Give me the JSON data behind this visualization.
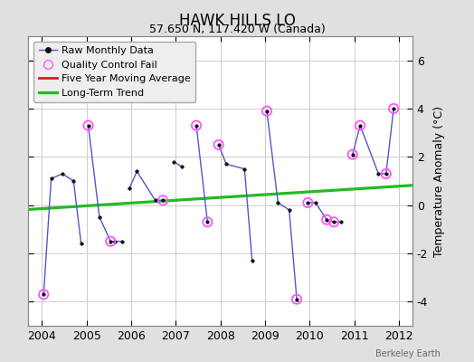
{
  "title": "HAWK HILLS LO",
  "subtitle": "57.650 N, 117.420 W (Canada)",
  "ylabel": "Temperature Anomaly (°C)",
  "attribution": "Berkeley Earth",
  "xlim": [
    2003.7,
    2012.3
  ],
  "ylim": [
    -5.0,
    7.0
  ],
  "yticks": [
    -4,
    -2,
    0,
    2,
    4,
    6
  ],
  "xticks": [
    2004,
    2005,
    2006,
    2007,
    2008,
    2009,
    2010,
    2011,
    2012
  ],
  "segments": [
    {
      "x": [
        2004.04,
        2004.21,
        2004.46,
        2004.71,
        2004.88
      ],
      "y": [
        -3.7,
        1.1,
        1.3,
        1.0,
        -1.6
      ]
    },
    {
      "x": [
        2005.04,
        2005.29,
        2005.54,
        2005.63,
        2005.79
      ],
      "y": [
        3.3,
        -0.5,
        -1.5,
        -1.5,
        -1.5
      ]
    },
    {
      "x": [
        2005.96,
        2006.13,
        2006.54,
        2006.71
      ],
      "y": [
        0.7,
        1.4,
        0.2,
        0.2
      ]
    },
    {
      "x": [
        2006.96,
        2007.13
      ],
      "y": [
        1.8,
        1.6
      ]
    },
    {
      "x": [
        2007.46,
        2007.71
      ],
      "y": [
        3.3,
        -0.7
      ]
    },
    {
      "x": [
        2007.96,
        2008.13,
        2008.54,
        2008.71
      ],
      "y": [
        2.5,
        1.7,
        1.5,
        -2.3
      ]
    },
    {
      "x": [
        2009.04,
        2009.29,
        2009.54,
        2009.71
      ],
      "y": [
        3.9,
        0.1,
        -0.2,
        -3.9
      ]
    },
    {
      "x": [
        2009.96,
        2010.13,
        2010.38,
        2010.54,
        2010.71
      ],
      "y": [
        0.1,
        0.1,
        -0.6,
        -0.7,
        -0.7
      ]
    },
    {
      "x": [
        2010.96,
        2011.13,
        2011.54,
        2011.71,
        2011.88
      ],
      "y": [
        2.1,
        3.3,
        1.3,
        1.3,
        4.0
      ]
    }
  ],
  "qc_x": [
    2004.04,
    2005.04,
    2005.54,
    2006.71,
    2007.46,
    2007.71,
    2007.96,
    2009.04,
    2009.71,
    2009.96,
    2010.38,
    2010.54,
    2010.96,
    2011.13,
    2011.71,
    2011.88
  ],
  "qc_y": [
    -3.7,
    3.3,
    -1.5,
    0.2,
    3.3,
    -0.7,
    2.5,
    3.9,
    -3.9,
    0.1,
    -0.6,
    -0.7,
    2.1,
    3.3,
    1.3,
    4.0
  ],
  "trend_x": [
    2003.7,
    2012.3
  ],
  "trend_y": [
    -0.18,
    0.82
  ],
  "raw_color": "#5555cc",
  "raw_marker_color": "#111111",
  "qc_color": "#ff55ff",
  "trend_color": "#22bb22",
  "moving_avg_color": "#cc2222",
  "bg_color": "#e0e0e0",
  "plot_bg_color": "#ffffff",
  "grid_color": "#cccccc",
  "legend_bg": "#eeeeee",
  "title_fontsize": 12,
  "subtitle_fontsize": 9,
  "tick_fontsize": 9,
  "ylabel_fontsize": 9,
  "legend_fontsize": 8
}
